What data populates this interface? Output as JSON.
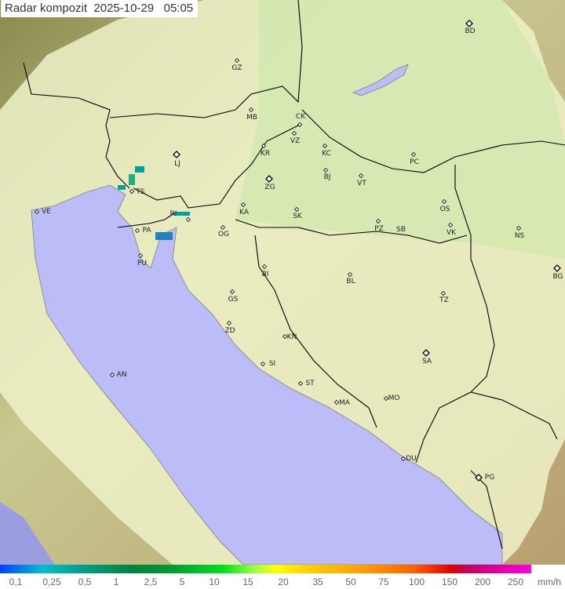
{
  "title": "Radar kompozit  2025-10-29   05:05",
  "legend": {
    "labels": [
      "0,1",
      "0,25",
      "0,5",
      "1",
      "2,5",
      "5",
      "10",
      "15",
      "20",
      "35",
      "50",
      "75",
      "100",
      "150",
      "200",
      "250"
    ],
    "unit": "mm/h"
  },
  "cities": [
    "GZ",
    "BD",
    "MB",
    "CK",
    "VZ",
    "KR",
    "KC",
    "PC",
    "LJ",
    "ZG",
    "BJ",
    "VT",
    "TS",
    "VE",
    "RI",
    "KA",
    "SK",
    "OS",
    "PA",
    "OG",
    "PZ",
    "SB",
    "VK",
    "NS",
    "PU",
    "BI",
    "BL",
    "BG",
    "GS",
    "TZ",
    "ZD",
    "KN",
    "SA",
    "SI",
    "AN",
    "ST",
    "MA",
    "MO",
    "DU",
    "PG"
  ],
  "colors": {
    "sea": "#b8b8f8",
    "land": "#d8e0a8",
    "coverage": "#f0f4d0",
    "rain": "#00a0a0"
  }
}
